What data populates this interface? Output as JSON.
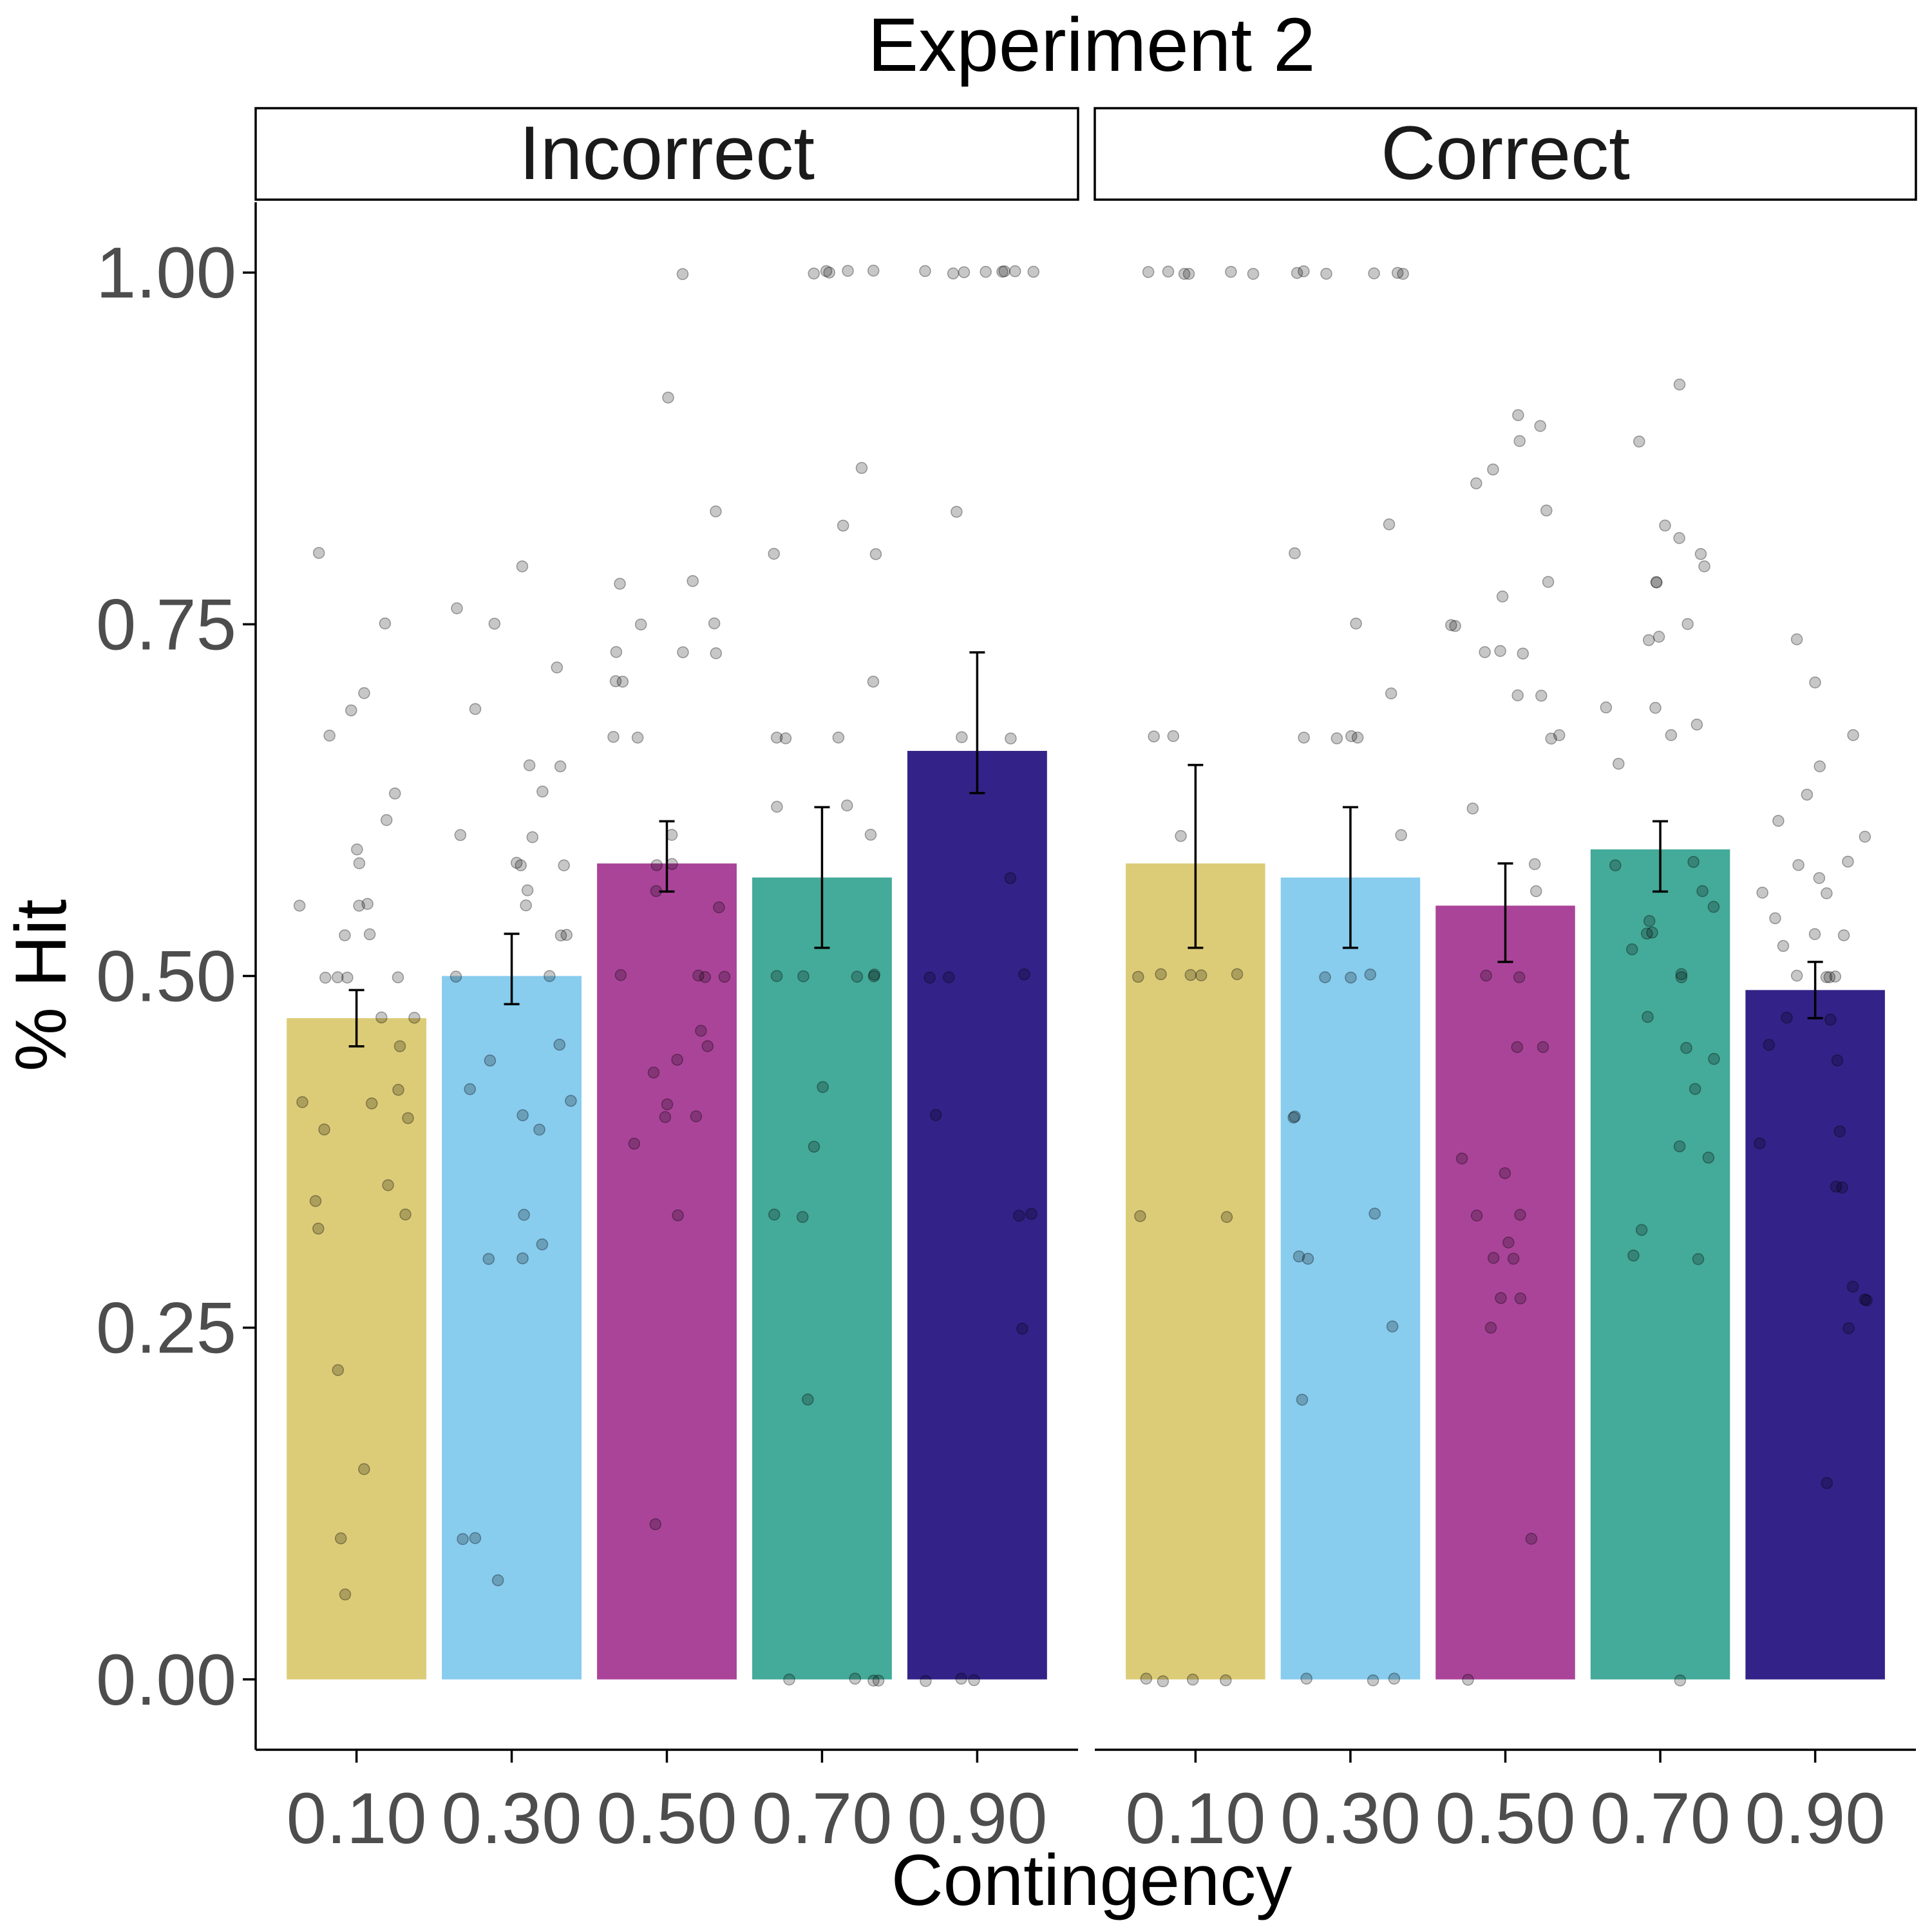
{
  "chart_data": {
    "type": "bar",
    "title": "Experiment 2",
    "xlabel": "Contingency",
    "ylabel": "% Hit",
    "ylim": [
      -0.05,
      1.05
    ],
    "yticks": [
      "0.00",
      "0.25",
      "0.50",
      "0.75",
      "1.00"
    ],
    "ytick_values": [
      0,
      0.25,
      0.5,
      0.75,
      1.0
    ],
    "categories": [
      "0.10",
      "0.30",
      "0.50",
      "0.70",
      "0.90"
    ],
    "colors": [
      "#DDCC77",
      "#88CCEE",
      "#AA4499",
      "#44AA99",
      "#332288"
    ],
    "grid": false,
    "legend": "none",
    "panels": [
      {
        "name": "Incorrect",
        "values": [
          0.47,
          0.5,
          0.58,
          0.57,
          0.66
        ],
        "error_low": [
          0.45,
          0.48,
          0.56,
          0.52,
          0.63
        ],
        "error_high": [
          0.49,
          0.53,
          0.61,
          0.62,
          0.73
        ],
        "points": [
          [
            0.8,
            0.75,
            0.7,
            0.69,
            0.67,
            0.63,
            0.61,
            0.59,
            0.58,
            0.55,
            0.55,
            0.55,
            0.53,
            0.53,
            0.5,
            0.5,
            0.5,
            0.5,
            0.47,
            0.47,
            0.45,
            0.42,
            0.41,
            0.41,
            0.4,
            0.39,
            0.35,
            0.34,
            0.33,
            0.32,
            0.22,
            0.15,
            0.1,
            0.06
          ],
          [
            0.79,
            0.76,
            0.75,
            0.72,
            0.69,
            0.65,
            0.65,
            0.63,
            0.6,
            0.6,
            0.58,
            0.58,
            0.58,
            0.56,
            0.55,
            0.53,
            0.53,
            0.5,
            0.5,
            0.45,
            0.44,
            0.42,
            0.41,
            0.4,
            0.39,
            0.33,
            0.31,
            0.3,
            0.3,
            0.1,
            0.1,
            0.07
          ],
          [
            1.0,
            0.91,
            0.83,
            0.78,
            0.78,
            0.75,
            0.75,
            0.73,
            0.73,
            0.73,
            0.71,
            0.71,
            0.67,
            0.67,
            0.6,
            0.58,
            0.58,
            0.56,
            0.55,
            0.5,
            0.5,
            0.5,
            0.5,
            0.46,
            0.45,
            0.44,
            0.43,
            0.41,
            0.4,
            0.4,
            0.38,
            0.33,
            0.11
          ],
          [
            1.0,
            1.0,
            1.0,
            1.0,
            1.0,
            0.86,
            0.82,
            0.8,
            0.8,
            0.71,
            0.67,
            0.67,
            0.67,
            0.62,
            0.62,
            0.6,
            0.5,
            0.5,
            0.5,
            0.5,
            0.5,
            0.42,
            0.38,
            0.33,
            0.33,
            0.2,
            0.0,
            0.0,
            0.0,
            0.0
          ],
          [
            1.0,
            1.0,
            1.0,
            1.0,
            1.0,
            1.0,
            1.0,
            1.0,
            0.83,
            0.67,
            0.67,
            0.57,
            0.5,
            0.5,
            0.5,
            0.4,
            0.33,
            0.33,
            0.25,
            0.0,
            0.0,
            0.0
          ]
        ]
      },
      {
        "name": "Correct",
        "values": [
          0.58,
          0.57,
          0.55,
          0.59,
          0.49
        ],
        "error_low": [
          0.52,
          0.52,
          0.51,
          0.56,
          0.47
        ],
        "error_high": [
          0.65,
          0.62,
          0.58,
          0.61,
          0.51
        ],
        "points": [
          [
            1.0,
            1.0,
            1.0,
            1.0,
            1.0,
            1.0,
            0.67,
            0.67,
            0.6,
            0.5,
            0.5,
            0.5,
            0.5,
            0.5,
            0.33,
            0.33,
            0.0,
            0.0,
            0.0,
            0.0
          ],
          [
            1.0,
            1.0,
            1.0,
            1.0,
            1.0,
            1.0,
            0.82,
            0.8,
            0.75,
            0.7,
            0.67,
            0.67,
            0.67,
            0.67,
            0.6,
            0.5,
            0.5,
            0.5,
            0.4,
            0.4,
            0.33,
            0.3,
            0.3,
            0.25,
            0.2,
            0.0,
            0.0,
            0.0
          ],
          [
            0.9,
            0.89,
            0.88,
            0.86,
            0.85,
            0.83,
            0.78,
            0.77,
            0.75,
            0.75,
            0.73,
            0.73,
            0.73,
            0.7,
            0.7,
            0.67,
            0.67,
            0.62,
            0.58,
            0.56,
            0.5,
            0.5,
            0.45,
            0.45,
            0.37,
            0.36,
            0.33,
            0.33,
            0.31,
            0.3,
            0.3,
            0.27,
            0.27,
            0.25,
            0.1,
            0.0
          ],
          [
            0.92,
            0.88,
            0.82,
            0.81,
            0.8,
            0.79,
            0.78,
            0.78,
            0.75,
            0.74,
            0.74,
            0.69,
            0.69,
            0.68,
            0.67,
            0.65,
            0.58,
            0.58,
            0.56,
            0.55,
            0.54,
            0.53,
            0.53,
            0.52,
            0.5,
            0.5,
            0.47,
            0.45,
            0.44,
            0.42,
            0.38,
            0.37,
            0.32,
            0.3,
            0.3,
            0.0
          ],
          [
            0.74,
            0.71,
            0.67,
            0.65,
            0.63,
            0.61,
            0.6,
            0.58,
            0.58,
            0.57,
            0.56,
            0.56,
            0.54,
            0.53,
            0.53,
            0.52,
            0.5,
            0.5,
            0.5,
            0.5,
            0.47,
            0.47,
            0.45,
            0.44,
            0.39,
            0.38,
            0.35,
            0.35,
            0.28,
            0.27,
            0.27,
            0.25,
            0.14
          ]
        ]
      }
    ]
  }
}
